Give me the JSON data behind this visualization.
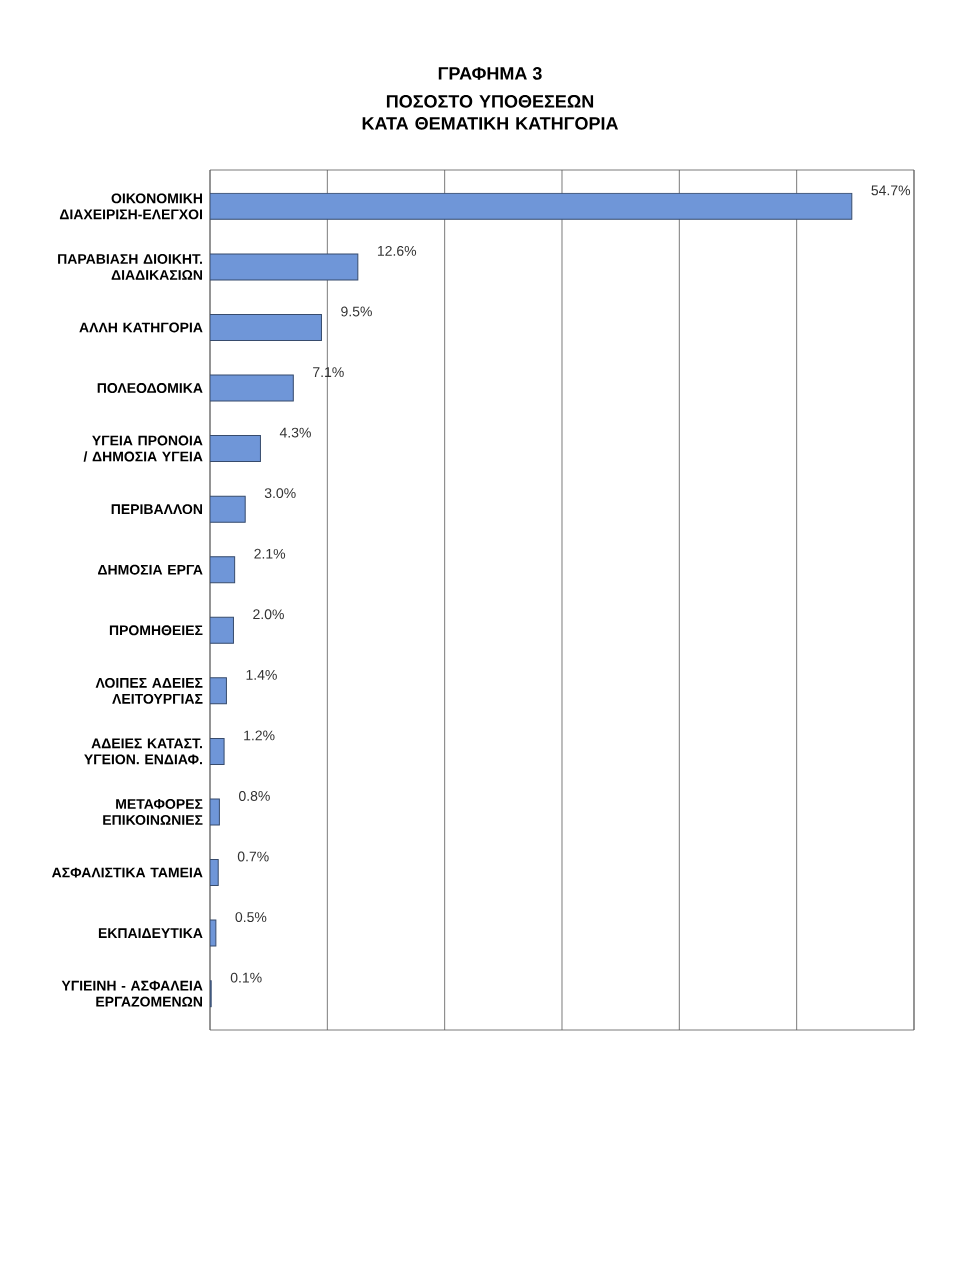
{
  "chart_data": {
    "type": "bar",
    "orientation": "horizontal",
    "title": "ΓΡΑΦΗΜΑ 3",
    "subtitle": "ΠΟΣΟΣΤΟ ΥΠΟΘΕΣΕΩΝ ΚΑΤΑ ΘΕΜΑΤΙΚΗ ΚΑΤΗΓΟΡΙΑ",
    "categories": [
      "ΟΙΚΟΝΟΜΙΚΗ ΔΙΑΧΕΙΡΙΣΗ-ΕΛΕΓΧΟΙ",
      "ΠΑΡΑΒΙΑΣΗ ΔΙΟΙΚΗΤ. ΔΙΑΔΙΚΑΣΙΩΝ",
      "ΑΛΛΗ ΚΑΤΗΓΟΡΙΑ",
      "ΠΟΛΕΟΔΟΜΙΚΑ",
      "ΥΓΕΙΑ ΠΡΟΝΟΙΑ / ΔΗΜΟΣΙΑ ΥΓΕΙΑ",
      "ΠΕΡΙΒΑΛΛΟΝ",
      "ΔΗΜΟΣΙΑ ΕΡΓΑ",
      "ΠΡΟΜΗΘΕΙΕΣ",
      "ΛΟΙΠΕΣ ΑΔΕΙΕΣ ΛΕΙΤΟΥΡΓΙΑΣ",
      "ΑΔΕΙΕΣ ΚΑΤΑΣΤ. ΥΓΕΙΟΝ. ΕΝΔΙΑΦ.",
      "ΜΕΤΑΦΟΡΕΣ ΕΠΙΚΟΙΝΩΝΙΕΣ",
      "ΑΣΦΑΛΙΣΤΙΚΑ ΤΑΜΕΙΑ",
      "ΕΚΠΑΙΔΕΥΤΙΚΑ",
      "ΥΓΙΕΙΝΗ - ΑΣΦΑΛΕΙΑ ΕΡΓΑΖΟΜΕΝΩΝ"
    ],
    "values": [
      54.7,
      12.6,
      9.5,
      7.1,
      4.3,
      3.0,
      2.1,
      2.0,
      1.4,
      1.2,
      0.8,
      0.7,
      0.5,
      0.1
    ],
    "value_labels": [
      "54.7%",
      "12.6%",
      "9.5%",
      "7.1%",
      "4.3%",
      "3.0%",
      "2.1%",
      "2.0%",
      "1.4%",
      "1.2%",
      "0.8%",
      "0.7%",
      "0.5%",
      "0.1%"
    ],
    "color": "#6f96d8",
    "xlim": [
      0,
      60
    ],
    "xticks": [
      {
        "value": 0,
        "label": null
      },
      {
        "value": 10,
        "label": null
      },
      {
        "value": 20,
        "label": null
      },
      {
        "value": 30,
        "label": null
      },
      {
        "value": 40,
        "label": null
      },
      {
        "value": 50,
        "label": null
      },
      {
        "value": 60,
        "label": null
      }
    ],
    "grid": "x",
    "tick_labels": "y"
  }
}
